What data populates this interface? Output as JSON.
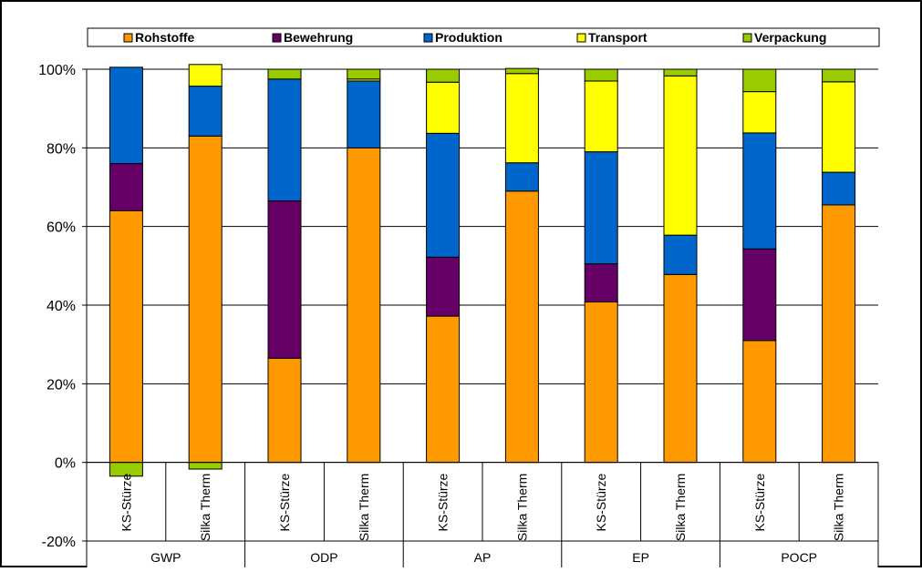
{
  "chart_data": {
    "type": "bar",
    "stacked": true,
    "legend_position": "top",
    "grid": true,
    "ylim": [
      -0.2,
      1.0
    ],
    "y_ticks": [
      {
        "value": -0.2,
        "label": "-20%"
      },
      {
        "value": 0.0,
        "label": "0%"
      },
      {
        "value": 0.2,
        "label": "20%"
      },
      {
        "value": 0.4,
        "label": "40%"
      },
      {
        "value": 0.6,
        "label": "60%"
      },
      {
        "value": 0.8,
        "label": "80%"
      },
      {
        "value": 1.0,
        "label": "100%"
      }
    ],
    "categories": [
      "KS-Stürze",
      "Silka Therm",
      "KS-Stürze",
      "Silka Therm",
      "KS-Stürze",
      "Silka Therm",
      "KS-Stürze",
      "Silka Therm",
      "KS-Stürze",
      "Silka Therm"
    ],
    "groups": [
      {
        "label": "GWP",
        "size": 2
      },
      {
        "label": "ODP",
        "size": 2
      },
      {
        "label": "AP",
        "size": 2
      },
      {
        "label": "EP",
        "size": 2
      },
      {
        "label": "POCP",
        "size": 2
      }
    ],
    "series": [
      {
        "name": "Rohstoffe",
        "color": "#FF9900",
        "values": [
          0.64,
          0.83,
          0.265,
          0.8,
          0.372,
          0.69,
          0.408,
          0.478,
          0.31,
          0.655
        ]
      },
      {
        "name": "Bewehrung",
        "color": "#660066",
        "values": [
          0.12,
          0.0,
          0.4,
          0.0,
          0.15,
          0.0,
          0.097,
          0.0,
          0.233,
          0.0
        ]
      },
      {
        "name": "Produktion",
        "color": "#0066CC",
        "values": [
          0.245,
          0.127,
          0.31,
          0.17,
          0.315,
          0.072,
          0.285,
          0.1,
          0.295,
          0.083
        ]
      },
      {
        "name": "Transport",
        "color": "#FFFF00",
        "values": [
          0.0,
          0.055,
          0.0,
          0.005,
          0.13,
          0.227,
          0.18,
          0.405,
          0.105,
          0.23
        ]
      },
      {
        "name": "Verpackung",
        "color": "#99CC00",
        "values": [
          -0.035,
          -0.017,
          0.025,
          0.025,
          0.033,
          0.013,
          0.03,
          0.017,
          0.057,
          0.032
        ]
      }
    ]
  }
}
